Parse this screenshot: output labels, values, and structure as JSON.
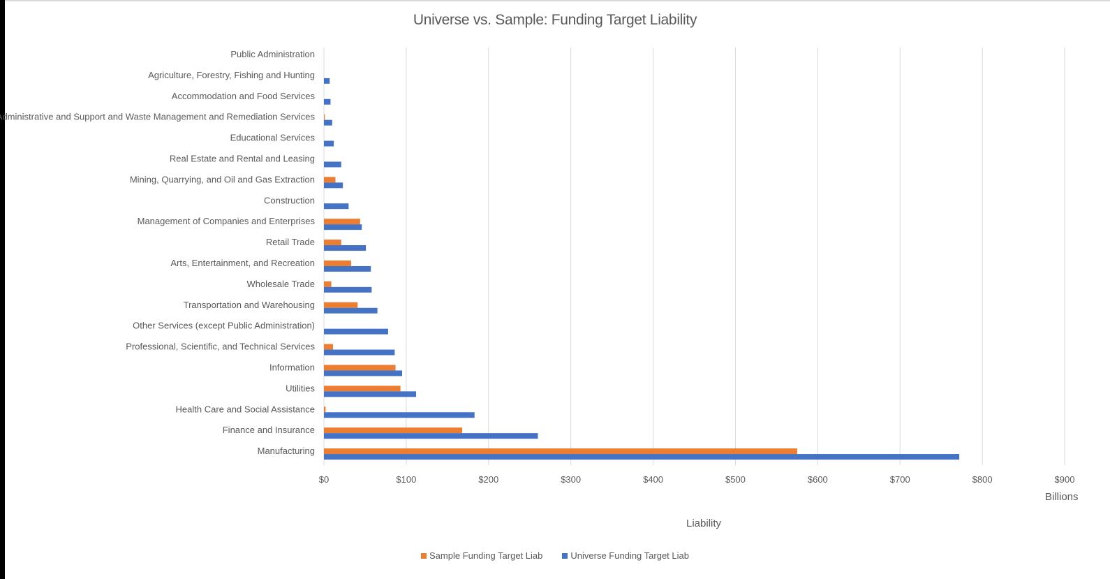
{
  "colors": {
    "sample": "#ED7D31",
    "universe": "#4472C4",
    "grid": "#D9D9D9",
    "text": "#595959"
  },
  "chart_data": {
    "type": "bar",
    "orientation": "horizontal",
    "title": "Universe vs. Sample: Funding Target Liability",
    "xlabel": "Liability",
    "units_label": "Billions",
    "xlim": [
      0,
      900
    ],
    "ticks": [
      0,
      100,
      200,
      300,
      400,
      500,
      600,
      700,
      800,
      900
    ],
    "tick_labels": [
      "$0",
      "$100",
      "$200",
      "$300",
      "$400",
      "$500",
      "$600",
      "$700",
      "$800",
      "$900"
    ],
    "grid": true,
    "legend_position": "bottom",
    "categories": [
      "Public Administration",
      "Agriculture, Forestry, Fishing and Hunting",
      "Accommodation and Food Services",
      "Administrative and Support and Waste Management and Remediation Services",
      "Educational Services",
      "Real Estate and Rental and Leasing",
      "Mining, Quarrying, and Oil and Gas Extraction",
      "Construction",
      "Management of Companies and Enterprises",
      "Retail Trade",
      "Arts, Entertainment, and Recreation",
      "Wholesale Trade",
      "Transportation and Warehousing",
      "Other Services (except Public Administration)",
      "Professional, Scientific, and Technical Services",
      "Information",
      "Utilities",
      "Health Care and Social Assistance",
      "Finance and Insurance",
      "Manufacturing"
    ],
    "series": [
      {
        "name": "Sample Funding Target Liab",
        "values": [
          0,
          0,
          0,
          1,
          0,
          0,
          14,
          0,
          44,
          21,
          33,
          9,
          41,
          0,
          11,
          87,
          93,
          2,
          168,
          575
        ]
      },
      {
        "name": "Universe Funding Target Liab",
        "values": [
          0,
          7,
          8,
          10,
          12,
          21,
          23,
          30,
          46,
          51,
          57,
          58,
          65,
          78,
          86,
          95,
          112,
          183,
          260,
          772
        ]
      }
    ]
  }
}
